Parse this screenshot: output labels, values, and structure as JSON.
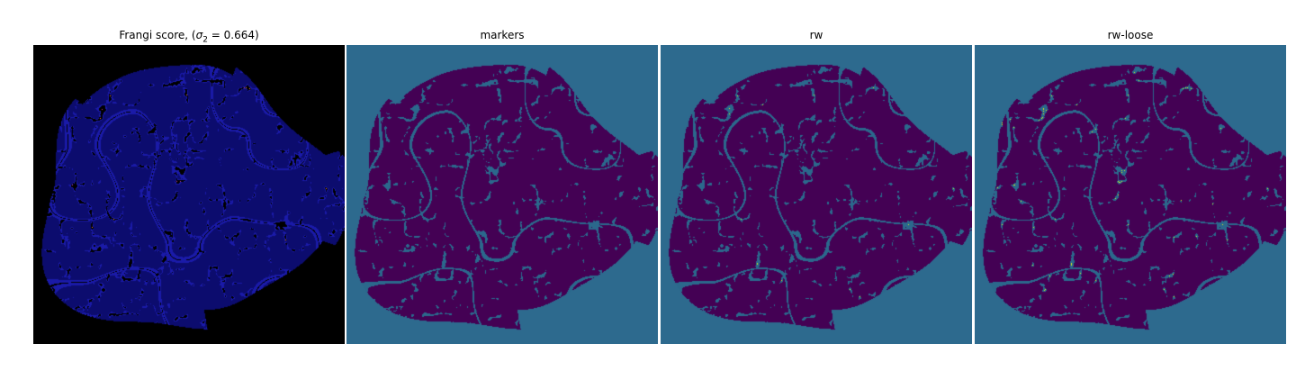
{
  "figure": {
    "panels": [
      {
        "id": "frangi",
        "title_prefix": "Frangi score, (",
        "title_symbol": "σ",
        "title_sub": "2",
        "title_eq": " = 0.664)",
        "style": "frangi",
        "colors": {
          "background": "#000000",
          "vessel": "#1a1aa8",
          "vessel_dark": "#0c0c6e",
          "highlight": "#f08a3c",
          "highlight2": "#c23c8a"
        },
        "highlight_level": 0.015
      },
      {
        "id": "markers",
        "title": "markers",
        "style": "markers",
        "colors": {
          "background": "#2d6a8e",
          "vessel": "#440154",
          "tissue": "#2b688c"
        },
        "highlight_level": 0
      },
      {
        "id": "rw",
        "title": "rw",
        "style": "rw",
        "colors": {
          "background": "#2d6a8e",
          "vessel": "#440154",
          "tissue": "#2b688c",
          "highlight": "#c8e020"
        },
        "highlight_level": 0.002
      },
      {
        "id": "rw-loose",
        "title": "rw-loose",
        "style": "rw",
        "colors": {
          "background": "#2d6a8e",
          "vessel": "#440154",
          "tissue": "#2b688c",
          "highlight": "#dde318"
        },
        "highlight_level": 0.006
      }
    ]
  }
}
